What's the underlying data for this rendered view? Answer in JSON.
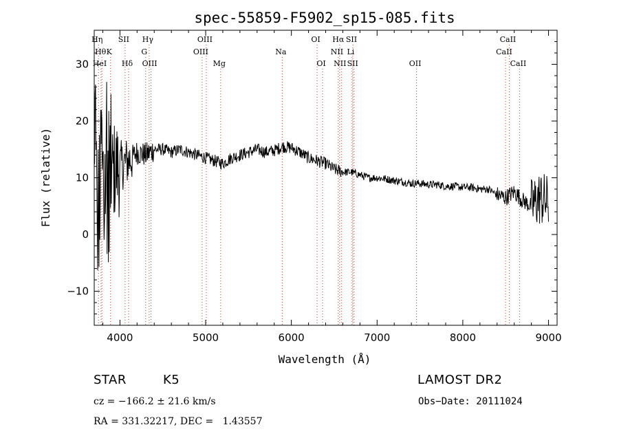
{
  "chart_data": {
    "type": "line",
    "title": "spec-55859-F5902_sp15-085.fits",
    "xlabel": "Wavelength (Å)",
    "ylabel": "Flux (relative)",
    "xlim": [
      3700,
      9100
    ],
    "ylim": [
      -16,
      36
    ],
    "xticks": [
      "4000",
      "5000",
      "6000",
      "7000",
      "8000",
      "9000"
    ],
    "yticks": [
      "−10",
      "0",
      "10",
      "20",
      "30"
    ],
    "grid": false,
    "line_color": "#000000",
    "marker_color": "#c0392b",
    "spectrum": {
      "x": [
        3700,
        3800,
        3900,
        4000,
        4100,
        4200,
        4300,
        4400,
        4500,
        4600,
        4700,
        4800,
        4900,
        5000,
        5100,
        5200,
        5300,
        5400,
        5500,
        5600,
        5700,
        5800,
        5900,
        6000,
        6100,
        6200,
        6300,
        6400,
        6500,
        6600,
        6700,
        6800,
        6900,
        7000,
        7100,
        7200,
        7300,
        7400,
        7500,
        7600,
        7700,
        7800,
        7900,
        8000,
        8100,
        8200,
        8300,
        8400,
        8500,
        8600,
        8700,
        8800,
        8900,
        9000
      ],
      "y": [
        8,
        9,
        11,
        12,
        13,
        14.5,
        14,
        15,
        15,
        14.5,
        15,
        14.5,
        14,
        13.5,
        13,
        12.5,
        13.5,
        14,
        14.5,
        15,
        14.5,
        14.8,
        15.5,
        15.3,
        14.5,
        13.5,
        13,
        12.5,
        11.5,
        11,
        11,
        10.5,
        10,
        10,
        9.8,
        9.5,
        9.3,
        9,
        9,
        8.8,
        8.8,
        8.5,
        8.5,
        8.3,
        8.3,
        8,
        8,
        7,
        6.5,
        7.5,
        6,
        5,
        6.5,
        5.5
      ]
    },
    "lines": [
      {
        "x": 3750,
        "row": 0,
        "label": "Hη"
      },
      {
        "x": 3790,
        "row": 1,
        "label": "Hθ"
      },
      {
        "x": 3780,
        "row": 2,
        "label": "HeI"
      },
      {
        "x": 3890,
        "row": 1,
        "label": "K"
      },
      {
        "x": 4060,
        "row": 0,
        "label": "SII"
      },
      {
        "x": 4101,
        "row": 2,
        "label": "Hδ"
      },
      {
        "x": 4341,
        "row": 0,
        "label": "Hγ"
      },
      {
        "x": 4300,
        "row": 1,
        "label": "G"
      },
      {
        "x": 4363,
        "row": 2,
        "label": "OIII"
      },
      {
        "x": 5007,
        "row": 0,
        "label": "OIII"
      },
      {
        "x": 4959,
        "row": 1,
        "label": "OIII"
      },
      {
        "x": 5175,
        "row": 2,
        "label": "Mg"
      },
      {
        "x": 5893,
        "row": 1,
        "label": "Na"
      },
      {
        "x": 6300,
        "row": 0,
        "label": "OI"
      },
      {
        "x": 6364,
        "row": 2,
        "label": "OI"
      },
      {
        "x": 6563,
        "row": 0,
        "label": "Hα"
      },
      {
        "x": 6548,
        "row": 1,
        "label": "NII"
      },
      {
        "x": 6583,
        "row": 2,
        "label": "NII"
      },
      {
        "x": 6717,
        "row": 0,
        "label": "SII"
      },
      {
        "x": 6708,
        "row": 1,
        "label": "Li"
      },
      {
        "x": 6731,
        "row": 2,
        "label": "SII"
      },
      {
        "x": 7460,
        "row": 2,
        "label": "OII"
      },
      {
        "x": 8498,
        "row": 1,
        "label": "CaII"
      },
      {
        "x": 8542,
        "row": 0,
        "label": "CaII"
      },
      {
        "x": 8662,
        "row": 2,
        "label": "CaII"
      }
    ]
  },
  "info": {
    "class_label": "STAR",
    "subclass": "K5",
    "survey": "LAMOST DR2",
    "cz": "cz = −166.2 ± 21.6 km/s",
    "obs_date": "Obs−Date: 20111024",
    "coords": "RA = 331.32217, DEC =   1.43557"
  }
}
